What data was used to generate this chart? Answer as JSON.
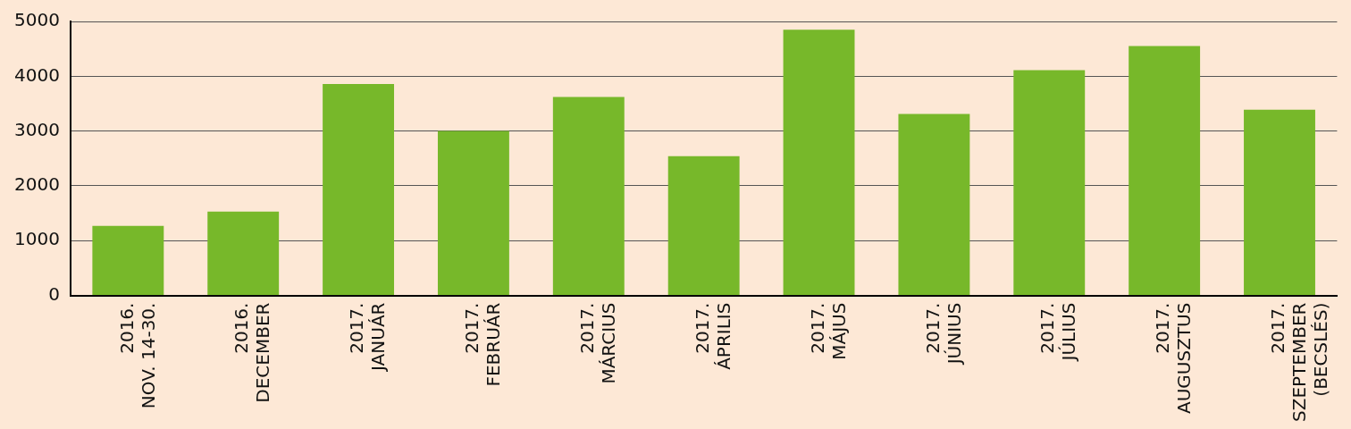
{
  "chart_data": {
    "type": "bar",
    "categories": [
      "2016.\nNOV. 14-30.",
      "2016.\nDECEMBER",
      "2017.\nJANUÁR",
      "2017.\nFEBRUÁR",
      "2017.\nMÁRCIUS",
      "2017.\nÁPRILIS",
      "2017.\nMÁJUS",
      "2017.\nJÚNIUS",
      "2017.\nJÚLIUS",
      "2017.\nAUGUSZTUS",
      "2017.\nSZEPTEMBER\n(BECSLÉS)"
    ],
    "values": [
      1270,
      1530,
      3860,
      3000,
      3620,
      2540,
      4850,
      3310,
      4110,
      4550,
      3390
    ],
    "color": "#77b82a",
    "ylim": [
      0,
      5000
    ],
    "yticks": [
      0,
      1000,
      2000,
      3000,
      4000,
      5000
    ],
    "grid": "y",
    "legend": false
  }
}
